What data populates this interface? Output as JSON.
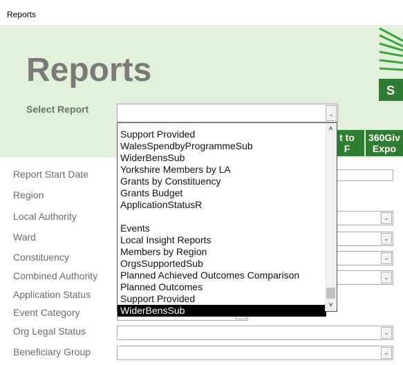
{
  "window": {
    "title": "Reports"
  },
  "header": {
    "title": "Reports",
    "select_label": "Select Report",
    "logo_letter": "S",
    "buttons": [
      {
        "lines": [
          "t to",
          "F"
        ]
      },
      {
        "lines": [
          "360Giv",
          "Expo"
        ]
      }
    ]
  },
  "dropdown": {
    "items": [
      "Support Provided",
      "WalesSpendbyProgrammeSub",
      "WiderBensSub",
      "Yorkshire Members by LA",
      "Grants by Constituency",
      "Grants Budget",
      "ApplicationStatusR",
      "Events",
      "Local Insight Reports",
      "Members by Region",
      "OrgsSupportedSub",
      "Planned Achieved Outcomes Comparison",
      "Planned Outcomes",
      "Support Provided",
      "WiderBensSub"
    ],
    "selected_index": 14
  },
  "form": {
    "fields": [
      "Report Start Date",
      "Region",
      "Local Authority",
      "Ward",
      "Constituency",
      "Combined Authority",
      "Application Status",
      "Event Category",
      "Org Legal Status",
      "Beneficiary Group"
    ]
  }
}
